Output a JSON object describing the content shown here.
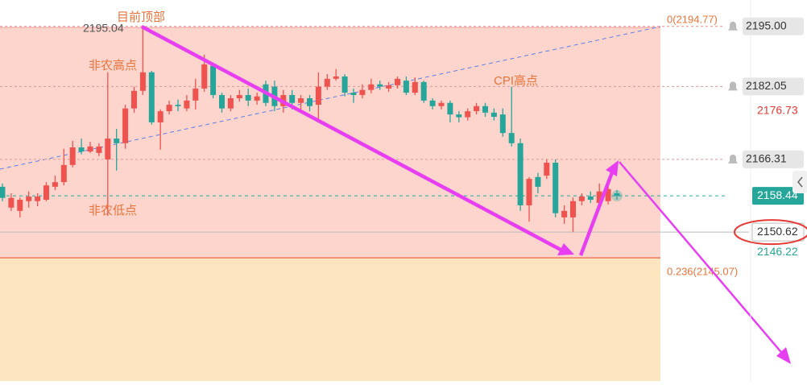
{
  "chart_data": {
    "type": "candlestick",
    "open": [
      2160.4,
      2155.9,
      2155.2,
      2157.3,
      2157.3,
      2157.6,
      2160.4,
      2161.4,
      2165.1,
      2168.9,
      2168.0,
      2167.7,
      2166.3,
      2170.8,
      2169.8,
      2177.3,
      2181.1,
      2185.1,
      2174.3,
      2176.7,
      2178.1,
      2177.3,
      2179.0,
      2181.6,
      2186.5,
      2180.2,
      2177.3,
      2179.5,
      2180.2,
      2179.0,
      2182.5,
      2182.0,
      2177.8,
      2180.2,
      2178.5,
      2179.5,
      2178.1,
      2182.0,
      2183.7,
      2184.2,
      2180.7,
      2180.2,
      2181.3,
      2182.5,
      2181.6,
      2182.3,
      2183.3,
      2180.7,
      2183.0,
      2179.0,
      2177.8,
      2178.5,
      2176.0,
      2175.4,
      2176.7,
      2177.8,
      2176.4,
      2176.0,
      2172.0,
      2169.8,
      2156.4,
      2162.5,
      2162.8,
      2165.6,
      2153.8,
      2153.8,
      2157.3,
      2158.3,
      2156.9,
      2157.3,
      2159.0
    ],
    "high": [
      2161.1,
      2159.0,
      2158.1,
      2159.4,
      2159.0,
      2161.4,
      2162.8,
      2168.6,
      2170.3,
      2170.8,
      2170.1,
      2169.8,
      2185.1,
      2172.9,
      2178.1,
      2182.0,
      2195.04,
      2185.4,
      2177.1,
      2179.0,
      2179.2,
      2180.2,
      2183.7,
      2188.9,
      2187.2,
      2180.7,
      2180.2,
      2181.3,
      2181.6,
      2180.7,
      2183.3,
      2183.3,
      2181.3,
      2181.3,
      2180.2,
      2180.2,
      2185.1,
      2184.7,
      2185.8,
      2184.7,
      2181.6,
      2182.5,
      2183.7,
      2183.3,
      2183.0,
      2184.2,
      2184.2,
      2184.0,
      2183.3,
      2179.5,
      2179.0,
      2179.0,
      2176.7,
      2177.3,
      2178.5,
      2178.5,
      2177.3,
      2177.3,
      2182.0,
      2170.8,
      2162.5,
      2163.4,
      2166.3,
      2166.3,
      2156.4,
      2158.1,
      2159.0,
      2159.4,
      2161.1,
      2161.1,
      2159.7
    ],
    "low": [
      2157.3,
      2155.2,
      2153.8,
      2155.9,
      2156.2,
      2157.3,
      2159.7,
      2160.7,
      2164.6,
      2167.4,
      2167.7,
      2167.0,
      2154.1,
      2163.9,
      2168.6,
      2176.4,
      2180.2,
      2173.8,
      2168.4,
      2176.0,
      2176.7,
      2176.7,
      2177.1,
      2180.9,
      2179.5,
      2176.4,
      2176.7,
      2178.8,
      2177.8,
      2178.1,
      2177.8,
      2176.7,
      2176.4,
      2177.1,
      2176.4,
      2176.7,
      2175.0,
      2181.3,
      2183.3,
      2179.9,
      2178.5,
      2179.5,
      2180.6,
      2181.3,
      2180.9,
      2181.6,
      2180.2,
      2180.2,
      2178.5,
      2177.1,
      2177.1,
      2174.3,
      2174.3,
      2174.7,
      2176.0,
      2175.5,
      2174.7,
      2171.2,
      2169.1,
      2155.2,
      2152.9,
      2159.0,
      2162.1,
      2153.8,
      2152.4,
      2150.62,
      2156.4,
      2156.9,
      2156.2,
      2156.6,
      2157.6
    ],
    "close": [
      2158.0,
      2158.0,
      2157.6,
      2158.3,
      2158.3,
      2160.7,
      2161.4,
      2165.1,
      2168.9,
      2168.0,
      2169.1,
      2169.1,
      2170.8,
      2169.8,
      2177.3,
      2181.1,
      2185.1,
      2174.3,
      2176.7,
      2178.1,
      2177.8,
      2179.0,
      2181.6,
      2186.8,
      2180.2,
      2177.3,
      2179.5,
      2180.2,
      2179.0,
      2179.9,
      2178.5,
      2177.8,
      2180.2,
      2178.5,
      2179.5,
      2177.8,
      2182.0,
      2183.7,
      2184.2,
      2180.7,
      2180.2,
      2181.3,
      2182.5,
      2182.0,
      2182.3,
      2183.7,
      2180.7,
      2183.0,
      2179.0,
      2177.8,
      2178.5,
      2176.0,
      2175.4,
      2176.7,
      2177.8,
      2176.4,
      2175.5,
      2172.0,
      2169.8,
      2156.4,
      2162.1,
      2160.4,
      2165.6,
      2154.7,
      2155.2,
      2157.3,
      2158.3,
      2157.6,
      2159.4,
      2159.9,
      2158.44
    ],
    "up_color": "#ef5350",
    "down_color": "#26a69a",
    "ylim": [
      2118.5,
      2200.7
    ],
    "yticks": [
      {
        "value": 2195,
        "label": "2195.00"
      },
      {
        "value": 2182.05,
        "label": "2182.05"
      },
      {
        "value": 2176.73,
        "label": "2176.73"
      },
      {
        "value": 2166.31,
        "label": "2166.31"
      },
      {
        "value": 2158.44,
        "label": "2158.44"
      },
      {
        "value": 2150.62,
        "label": "2150.62"
      },
      {
        "value": 2146.22,
        "label": "2146.22"
      }
    ],
    "fib_levels": [
      {
        "value": 2194.77,
        "label": "0(2194.77)"
      },
      {
        "value": 2145.07,
        "label": "0.236(2145.07)"
      }
    ],
    "annotations": [
      "目前顶部",
      "非农高点",
      "非农低点",
      "CPI高点"
    ]
  }
}
